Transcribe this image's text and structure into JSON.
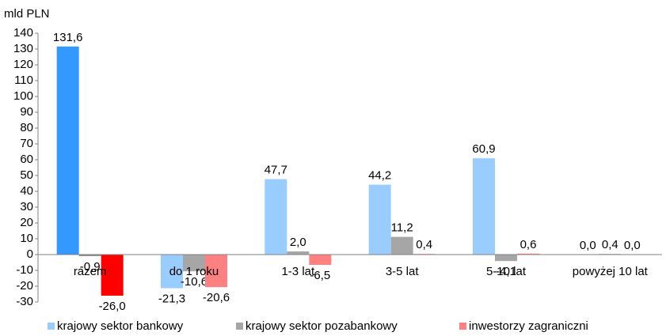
{
  "chart_data": {
    "type": "bar",
    "y_axis_label": "mld PLN",
    "categories": [
      "razem",
      "do 1 roku",
      "1-3 lat",
      "3-5 lat",
      "5-10 lat",
      "powyżej 10 lat"
    ],
    "series": [
      {
        "name": "krajowy sektor bankowy",
        "color": "#99ccff",
        "colors": [
          "#3399ff",
          "#99ccff",
          "#99ccff",
          "#99ccff",
          "#99ccff",
          "#99ccff"
        ],
        "values": [
          131.6,
          -21.3,
          47.7,
          44.2,
          60.9,
          0.0
        ],
        "value_labels": [
          "131,6",
          "-21,3",
          "47,7",
          "44,2",
          "60,9",
          "0,0"
        ]
      },
      {
        "name": "krajowy sektor pozabankowy",
        "color": "#a6a6a6",
        "colors": [
          "#808080",
          "#a6a6a6",
          "#a6a6a6",
          "#a6a6a6",
          "#a6a6a6",
          "#a6a6a6"
        ],
        "values": [
          -0.9,
          -10.6,
          2.0,
          11.2,
          -4.1,
          0.4
        ],
        "value_labels": [
          "-0,9",
          "-10,6",
          "2,0",
          "11,2",
          "-4,1",
          "0,4"
        ]
      },
      {
        "name": "inwestorzy zagraniczni",
        "color": "#ff8080",
        "colors": [
          "#ff0000",
          "#ff8080",
          "#ff8080",
          "#ff8080",
          "#ff8080",
          "#ff8080"
        ],
        "values": [
          -26.0,
          -20.6,
          -6.5,
          0.4,
          0.6,
          0.0
        ],
        "value_labels": [
          "-26,0",
          "-20,6",
          "-6,5",
          "0,4",
          "0,6",
          "0,0"
        ]
      }
    ],
    "ylim": [
      -30,
      140
    ],
    "yticks": [
      -30,
      -20,
      -10,
      0,
      10,
      20,
      30,
      40,
      50,
      60,
      70,
      80,
      90,
      100,
      110,
      120,
      130,
      140
    ],
    "grid": false,
    "legend": "bottom"
  }
}
